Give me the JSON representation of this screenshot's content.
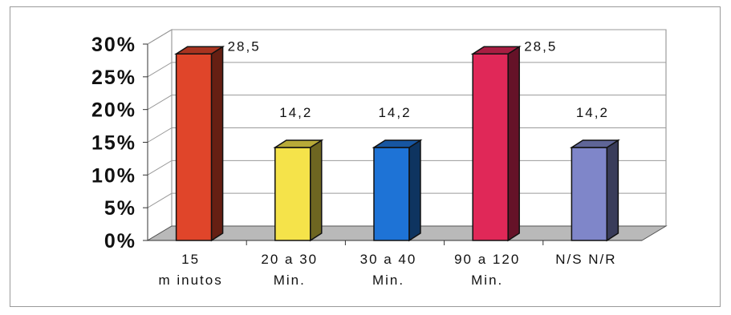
{
  "chart_data": {
    "type": "bar",
    "title": "",
    "xlabel": "",
    "ylabel": "",
    "categories": [
      [
        "15",
        "m inutos"
      ],
      [
        "20 a 30",
        "Min."
      ],
      [
        "30 a 40",
        "Min."
      ],
      [
        "90 a 120",
        "Min."
      ],
      [
        "N/S  N/R",
        ""
      ]
    ],
    "values": [
      28.5,
      14.2,
      14.2,
      28.5,
      14.2
    ],
    "data_labels": [
      "28,5",
      "14,2",
      "14,2",
      "28,5",
      "14,2"
    ],
    "colors": [
      "#e0452a",
      "#f5e34a",
      "#1e73d6",
      "#e02858",
      "#7f86c9"
    ],
    "ylim": [
      0,
      30
    ],
    "yticks": [
      {
        "value": 0,
        "label": "0%"
      },
      {
        "value": 5,
        "label": "5%"
      },
      {
        "value": 10,
        "label": "10%"
      },
      {
        "value": 15,
        "label": "15%"
      },
      {
        "value": 20,
        "label": "20%"
      },
      {
        "value": 25,
        "label": "25%"
      },
      {
        "value": 30,
        "label": "30%"
      }
    ],
    "grid": true,
    "legend": "none",
    "style": "3d"
  }
}
